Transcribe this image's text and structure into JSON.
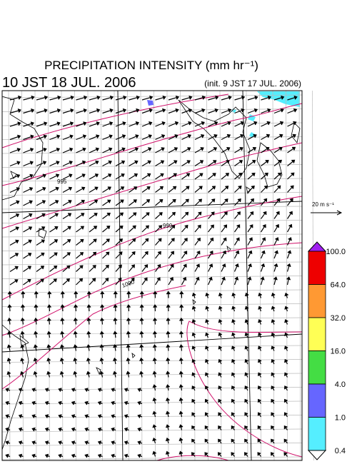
{
  "header": {
    "title": "PRECIPITATION INTENSITY (mm hr⁻¹)",
    "valid_time": "10 JST 18 JUL. 2006",
    "init_time": "(init. 9 JST 17 JUL. 2006)"
  },
  "vector_key": {
    "label": "20 m s⁻¹"
  },
  "contour_labels": [
    "995",
    "999",
    "1000"
  ],
  "colorbar": {
    "levels": [
      {
        "value": 100,
        "label": "100.0"
      },
      {
        "value": 64,
        "label": "64.0"
      },
      {
        "value": 32,
        "label": "32.0"
      },
      {
        "value": 16,
        "label": "16.0"
      },
      {
        "value": 4,
        "label": "4.0"
      },
      {
        "value": 1,
        "label": "1.0"
      },
      {
        "value": 0.4,
        "label": "0.4"
      }
    ],
    "colors": [
      "#a020f0",
      "#ee0000",
      "#ff9933",
      "#ffff55",
      "#44dd44",
      "#6666ff",
      "#55eeff",
      "#ffffff"
    ]
  }
}
